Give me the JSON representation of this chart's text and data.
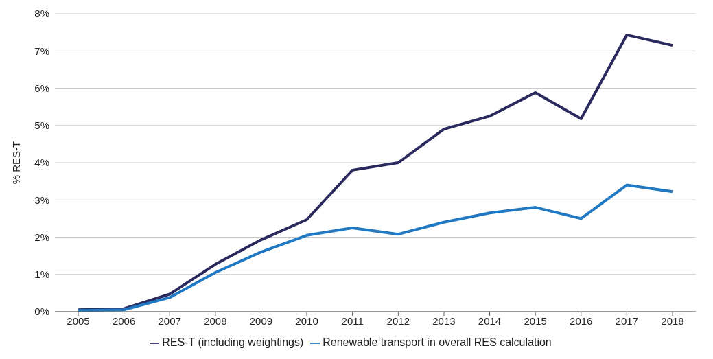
{
  "chart_data": {
    "type": "line",
    "ylabel": "% RES-T",
    "categories": [
      "2005",
      "2006",
      "2007",
      "2008",
      "2009",
      "2010",
      "2011",
      "2012",
      "2013",
      "2014",
      "2015",
      "2016",
      "2017",
      "2018"
    ],
    "series": [
      {
        "name": "RES-T (including weightings)",
        "color": "#2b2a5e",
        "values": [
          0.05,
          0.08,
          0.47,
          1.27,
          1.93,
          2.47,
          3.8,
          4.0,
          4.9,
          5.25,
          5.88,
          5.18,
          7.43,
          7.15
        ]
      },
      {
        "name": "Renewable transport in overall RES calculation",
        "color": "#1f78c1",
        "values": [
          0.03,
          0.05,
          0.38,
          1.05,
          1.6,
          2.05,
          2.25,
          2.08,
          2.4,
          2.65,
          2.8,
          2.5,
          3.4,
          3.22
        ]
      }
    ],
    "ylim": [
      0,
      8
    ],
    "yticks": [
      {
        "value": 0,
        "label": "0%"
      },
      {
        "value": 1,
        "label": "1%"
      },
      {
        "value": 2,
        "label": "2%"
      },
      {
        "value": 3,
        "label": "3%"
      },
      {
        "value": 4,
        "label": "4%"
      },
      {
        "value": 5,
        "label": "5%"
      },
      {
        "value": 6,
        "label": "6%"
      },
      {
        "value": 7,
        "label": "7%"
      },
      {
        "value": 8,
        "label": "8%"
      }
    ],
    "grid": "y",
    "legend": "bottom",
    "marker": "none",
    "line_style": "solid"
  }
}
